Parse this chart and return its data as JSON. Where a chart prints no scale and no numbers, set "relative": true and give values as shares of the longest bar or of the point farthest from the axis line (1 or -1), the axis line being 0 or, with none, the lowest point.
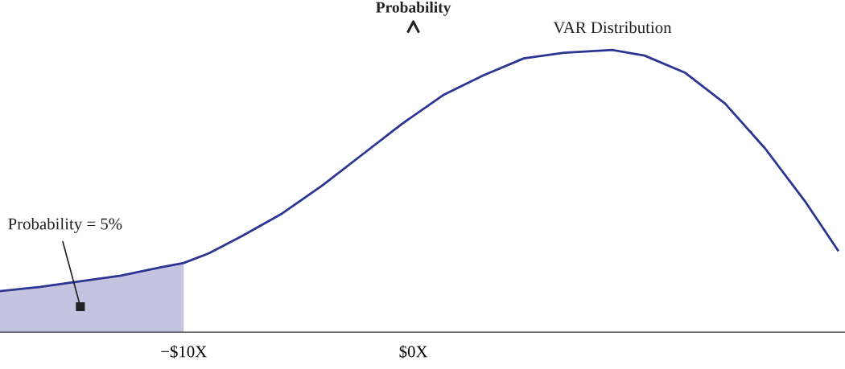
{
  "chart_data": {
    "type": "line",
    "relative": true,
    "ylabel": "Probability",
    "x": [
      -18.0,
      -16.25,
      -14.5,
      -12.74,
      -10.98,
      -10.0,
      -8.88,
      -7.47,
      -5.72,
      -3.96,
      -2.21,
      -0.46,
      1.3,
      3.05,
      4.81,
      6.56,
      8.67,
      10.07,
      11.82,
      13.58,
      15.33,
      17.09,
      18.49
    ],
    "series": [
      {
        "type": "area",
        "color": "#c4c4e0",
        "x": [
          -18.0,
          -16.25,
          -14.5,
          -12.74,
          -10.98,
          -10.0
        ],
        "values": [
          0.145,
          0.16,
          0.18,
          0.2,
          0.23,
          0.245
        ]
      },
      {
        "name": "VAR Distribution",
        "color": "#2b3594",
        "values": [
          0.145,
          0.16,
          0.18,
          0.2,
          0.23,
          0.245,
          0.28,
          0.34,
          0.42,
          0.52,
          0.63,
          0.74,
          0.84,
          0.91,
          0.97,
          0.99,
          1.0,
          0.98,
          0.92,
          0.81,
          0.65,
          0.46,
          0.29
        ]
      }
    ],
    "xlim": [
      -18,
      18.8
    ],
    "xticks": [
      {
        "value": -10,
        "label": "−$10X"
      },
      {
        "value": 0,
        "label": "$0X"
      }
    ],
    "annotations": [
      {
        "text": "Probability = 5%",
        "x": -14.5,
        "y": 0.09
      }
    ],
    "marker": "none",
    "line_style": "solid"
  }
}
